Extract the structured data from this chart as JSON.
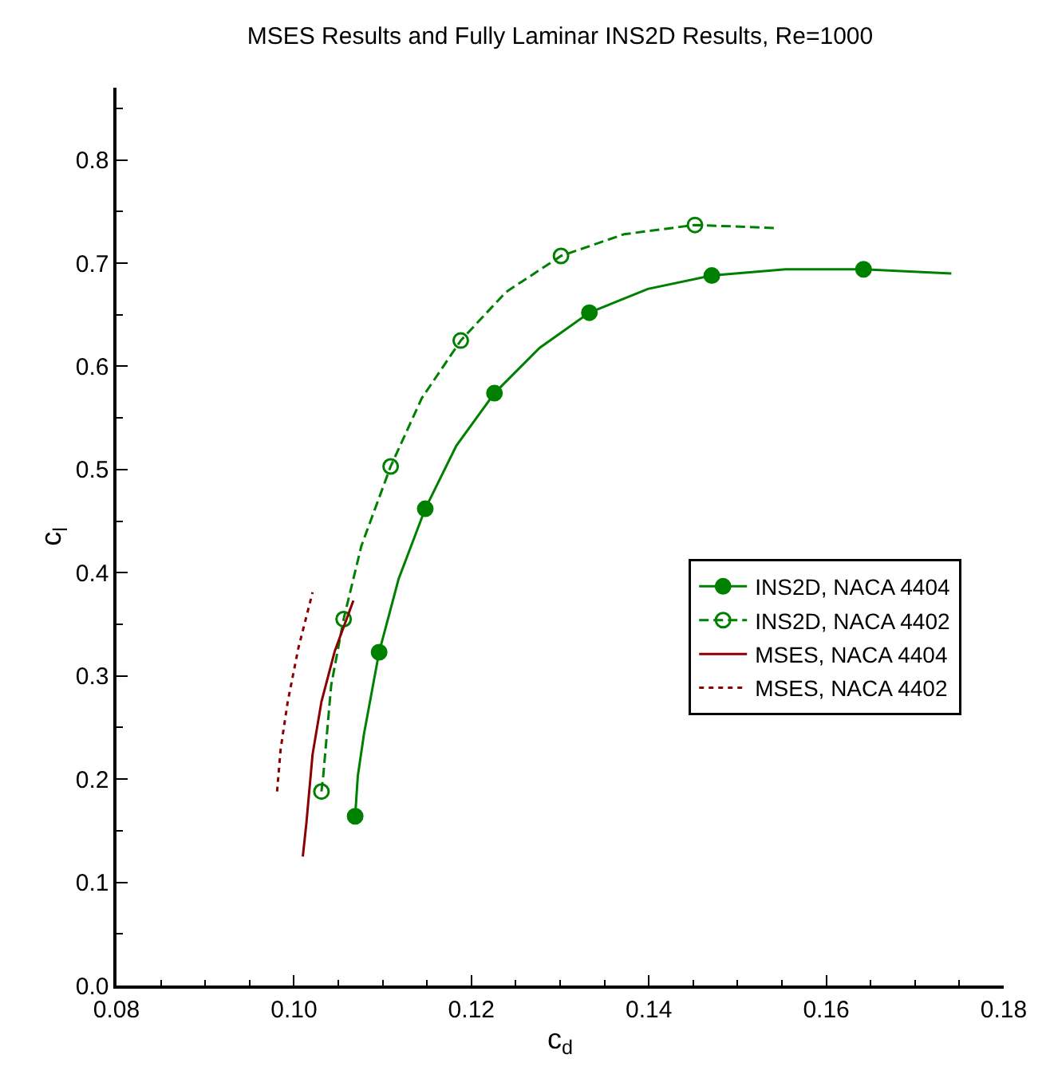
{
  "chart_data": {
    "type": "line",
    "title": "MSES Results and Fully Laminar INS2D Results, Re=1000",
    "xlabel": "c$_{d}$",
    "ylabel": "c$_{l}$",
    "xlim": [
      0.08,
      0.18
    ],
    "ylim": [
      0,
      0.87
    ],
    "xticks": [
      {
        "value": 0.08,
        "label": "0.08"
      },
      {
        "value": 0.085,
        "label": null
      },
      {
        "value": 0.09,
        "label": null
      },
      {
        "value": 0.095,
        "label": null
      },
      {
        "value": 0.1,
        "label": "0.10"
      },
      {
        "value": 0.105,
        "label": null
      },
      {
        "value": 0.11,
        "label": null
      },
      {
        "value": 0.115,
        "label": null
      },
      {
        "value": 0.12,
        "label": "0.12"
      },
      {
        "value": 0.125,
        "label": null
      },
      {
        "value": 0.13,
        "label": null
      },
      {
        "value": 0.135,
        "label": null
      },
      {
        "value": 0.14,
        "label": "0.14"
      },
      {
        "value": 0.145,
        "label": null
      },
      {
        "value": 0.15,
        "label": null
      },
      {
        "value": 0.155,
        "label": null
      },
      {
        "value": 0.16,
        "label": "0.16"
      },
      {
        "value": 0.165,
        "label": null
      },
      {
        "value": 0.17,
        "label": null
      },
      {
        "value": 0.175,
        "label": null
      },
      {
        "value": 0.18,
        "label": "0.18"
      }
    ],
    "yticks": [
      {
        "value": 0,
        "label": "0.0"
      },
      {
        "value": 0.05,
        "label": null
      },
      {
        "value": 0.1,
        "label": "0.1"
      },
      {
        "value": 0.15,
        "label": null
      },
      {
        "value": 0.2,
        "label": "0.2"
      },
      {
        "value": 0.25,
        "label": null
      },
      {
        "value": 0.3,
        "label": "0.3"
      },
      {
        "value": 0.35,
        "label": null
      },
      {
        "value": 0.4,
        "label": "0.4"
      },
      {
        "value": 0.45,
        "label": null
      },
      {
        "value": 0.5,
        "label": "0.5"
      },
      {
        "value": 0.55,
        "label": null
      },
      {
        "value": 0.6,
        "label": "0.6"
      },
      {
        "value": 0.65,
        "label": null
      },
      {
        "value": 0.7,
        "label": "0.7"
      },
      {
        "value": 0.75,
        "label": null
      },
      {
        "value": 0.8,
        "label": "0.8"
      },
      {
        "value": 0.85,
        "label": null
      }
    ],
    "grid": false,
    "legend": "right",
    "series": [
      {
        "name": "INS2D, NACA 4404",
        "type": "line",
        "color": "#008000",
        "line_style": "solid",
        "x": [
          0.1069,
          0.1072,
          0.1079,
          0.1096,
          0.1118,
          0.1148,
          0.1183,
          0.1226,
          0.1277,
          0.1333,
          0.1399,
          0.1471,
          0.1554,
          0.1642,
          0.1741
        ],
        "values": [
          0.164,
          0.203,
          0.244,
          0.323,
          0.394,
          0.462,
          0.523,
          0.574,
          0.618,
          0.652,
          0.675,
          0.688,
          0.694,
          0.694,
          0.69
        ]
      },
      {
        "type": "scatter",
        "color": "#008000",
        "marker": "circle",
        "x": [
          0.1069,
          0.1096,
          0.1148,
          0.1226,
          0.1333,
          0.1471,
          0.1642
        ],
        "values": [
          0.164,
          0.323,
          0.462,
          0.574,
          0.652,
          0.688,
          0.694
        ]
      },
      {
        "name": "INS2D, NACA 4402",
        "type": "line",
        "color": "#008000",
        "line_style": "dashed",
        "x": [
          0.1031,
          0.1033,
          0.1042,
          0.1056,
          0.1076,
          0.1109,
          0.1144,
          0.1188,
          0.1239,
          0.1301,
          0.1372,
          0.1452,
          0.1543
        ],
        "values": [
          0.188,
          0.203,
          0.291,
          0.355,
          0.426,
          0.503,
          0.569,
          0.625,
          0.672,
          0.707,
          0.728,
          0.737,
          0.734
        ]
      },
      {
        "type": "scatter",
        "color": "#008000",
        "marker": "circle-open",
        "x": [
          0.1031,
          0.1056,
          0.1109,
          0.1188,
          0.1301,
          0.1452
        ],
        "values": [
          0.188,
          0.355,
          0.503,
          0.625,
          0.707,
          0.737
        ]
      },
      {
        "name": "MSES, NACA 4404",
        "type": "line",
        "color": "#8b0000",
        "line_style": "solid",
        "x": [
          0.101,
          0.1014,
          0.1021,
          0.1031,
          0.1046,
          0.1067
        ],
        "values": [
          0.125,
          0.157,
          0.224,
          0.275,
          0.324,
          0.373
        ]
      },
      {
        "name": "MSES, NACA 4402",
        "type": "line",
        "color": "#8b0000",
        "line_style": "dotted",
        "x": [
          0.0981,
          0.0985,
          0.0993,
          0.1005,
          0.1021
        ],
        "values": [
          0.188,
          0.229,
          0.275,
          0.327,
          0.381
        ]
      }
    ]
  }
}
